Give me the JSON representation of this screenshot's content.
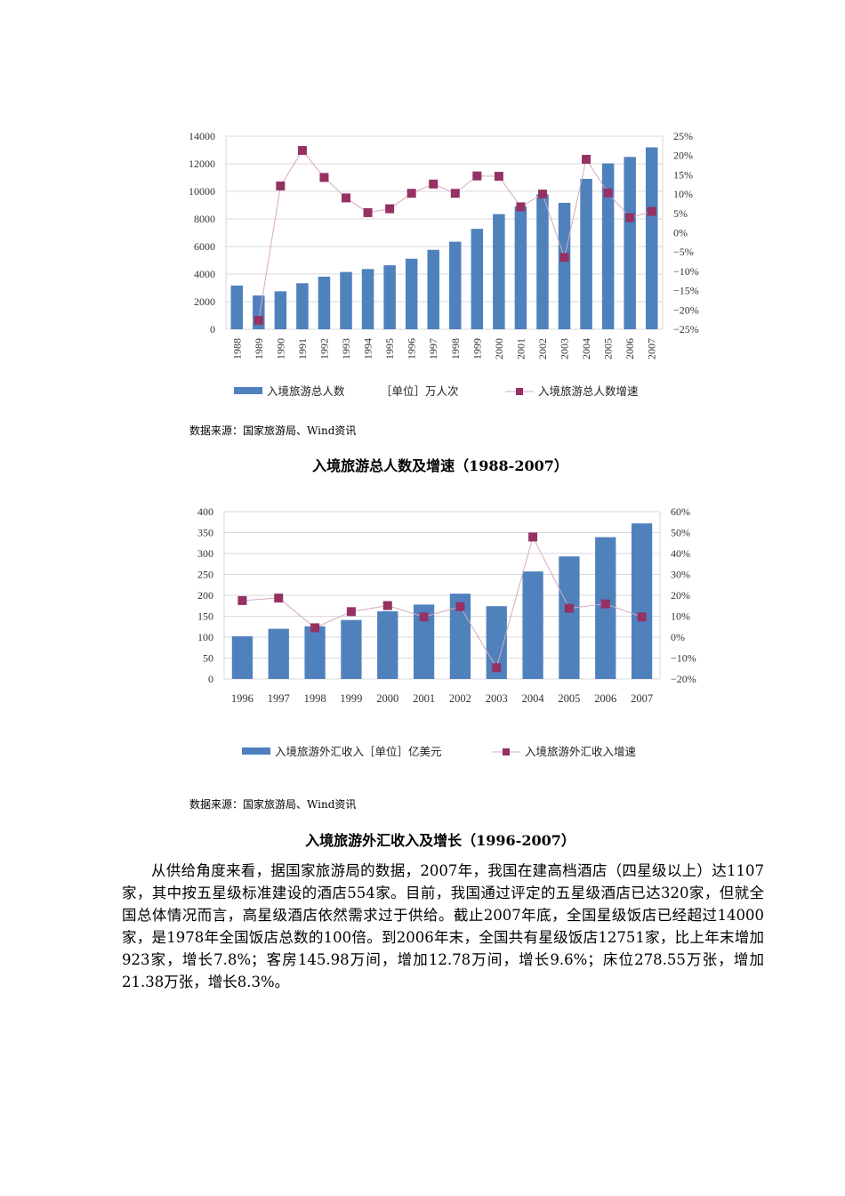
{
  "chart_data": [
    {
      "type": "bar+line",
      "categories": [
        "1988",
        "1989",
        "1990",
        "1991",
        "1992",
        "1993",
        "1994",
        "1995",
        "1996",
        "1997",
        "1998",
        "1999",
        "2000",
        "2001",
        "2002",
        "2003",
        "2004",
        "2005",
        "2006",
        "2007"
      ],
      "series": [
        {
          "name": "入境旅游总人数",
          "axis": "left",
          "type": "bar",
          "color": "#4f81bd",
          "values": [
            3170,
            2450,
            2750,
            3335,
            3811,
            4153,
            4368,
            4639,
            5113,
            5759,
            6348,
            7280,
            8344,
            8901,
            9791,
            9166,
            10904,
            12029,
            12494,
            13187
          ]
        },
        {
          "name": "入境旅游总人数增速",
          "axis": "right",
          "type": "line",
          "color": "#953163",
          "values": [
            null,
            -22.7,
            12.1,
            21.3,
            14.3,
            9.0,
            5.2,
            6.2,
            10.2,
            12.6,
            10.2,
            14.7,
            14.6,
            6.7,
            10.0,
            -6.4,
            19.0,
            10.3,
            3.9,
            5.5
          ]
        }
      ],
      "unit_label": "［单位］万人次",
      "ylim": [
        0,
        14000
      ],
      "yticks": [
        "0",
        "2000",
        "4000",
        "6000",
        "8000",
        "10000",
        "12000",
        "14000"
      ],
      "y2lim": [
        -25,
        25
      ],
      "y2ticks": [
        "-25%",
        "-20%",
        "-15%",
        "-10%",
        "-5%",
        "0%",
        "5%",
        "10%",
        "15%",
        "20%",
        "25%"
      ],
      "grid": true,
      "legend": "bottom",
      "source": "数据来源：国家旅游局、Wind资讯",
      "title": "入境旅游总人数及增速（1988-2007）"
    },
    {
      "type": "bar+line",
      "categories": [
        "1996",
        "1997",
        "1998",
        "1999",
        "2000",
        "2001",
        "2002",
        "2003",
        "2004",
        "2005",
        "2006",
        "2007"
      ],
      "series": [
        {
          "name": "入境旅游外汇收入［单位］亿美元",
          "axis": "left",
          "type": "bar",
          "color": "#4f81bd",
          "values": [
            102,
            120,
            126,
            141,
            162,
            178,
            204,
            174,
            257,
            293,
            339,
            372
          ]
        },
        {
          "name": "入境旅游外汇收入增速",
          "axis": "right",
          "type": "line",
          "color": "#953163",
          "values": [
            17.5,
            18.7,
            4.5,
            12.2,
            15.1,
            9.7,
            14.6,
            -14.6,
            47.9,
            13.8,
            15.9,
            9.7
          ]
        }
      ],
      "ylim": [
        0,
        400
      ],
      "yticks": [
        "0",
        "50",
        "100",
        "150",
        "200",
        "250",
        "300",
        "350",
        "400"
      ],
      "y2lim": [
        -20,
        60
      ],
      "y2ticks": [
        "-20%",
        "-10%",
        "0%",
        "10%",
        "20%",
        "30%",
        "40%",
        "50%",
        "60%"
      ],
      "grid": true,
      "legend": "bottom",
      "source": "数据来源：国家旅游局、Wind资讯",
      "title": "入境旅游外汇收入及增长（1996-2007）"
    }
  ],
  "paragraph": "从供给角度来看，据国家旅游局的数据，2007年，我国在建高档酒店（四星级以上）达1107家，其中按五星级标准建设的酒店554家。目前，我国通过评定的五星级酒店已达320家，但就全国总体情况而言，高星级酒店依然需求过于供给。截止2007年底，全国星级饭店已经超过14000家，是1978年全国饭店总数的100倍。到2006年末，全国共有星级饭店12751家，比上年末增加923家，增长7.8%；客房145.98万间，增加12.78万间，增长9.6%；床位278.55万张，增加21.38万张，增长8.3%。"
}
